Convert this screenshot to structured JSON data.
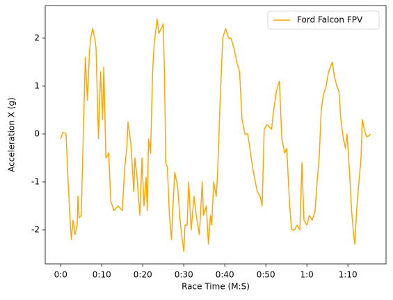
{
  "chart_data": {
    "type": "line",
    "xlabel": "Race Time (M:S)",
    "ylabel": "Acceleration X (g)",
    "legend": "upper right",
    "grid": false,
    "xlim": [
      -3.78,
      79.3
    ],
    "ylim": [
      -2.71,
      2.68
    ],
    "xticks": [
      {
        "value": 0,
        "label": "0:0"
      },
      {
        "value": 10,
        "label": "0:10"
      },
      {
        "value": 20,
        "label": "0:20"
      },
      {
        "value": 30,
        "label": "0:30"
      },
      {
        "value": 40,
        "label": "0:40"
      },
      {
        "value": 50,
        "label": "0:50"
      },
      {
        "value": 60,
        "label": "1:0"
      },
      {
        "value": 70,
        "label": "1:10"
      }
    ],
    "yticks": [
      -2,
      -1,
      0,
      1,
      2
    ],
    "x": [
      0,
      0.5,
      1.0,
      1.3,
      1.8,
      2.3,
      2.6,
      3.0,
      3.5,
      4.0,
      4.2,
      4.5,
      5.0,
      5.5,
      6.0,
      6.5,
      7.0,
      7.3,
      7.8,
      8.3,
      8.6,
      9.2,
      9.7,
      10.2,
      10.5,
      11.0,
      11.7,
      12.2,
      13.0,
      14.0,
      15.0,
      15.6,
      16.1,
      16.4,
      17.1,
      17.8,
      18.1,
      18.6,
      19.3,
      19.8,
      20.3,
      20.8,
      21.1,
      21.4,
      21.9,
      22.4,
      22.8,
      23.5,
      23.9,
      24.5,
      25.0,
      25.3,
      25.6,
      26.0,
      26.5,
      27.0,
      27.3,
      27.8,
      28.5,
      29.1,
      29.6,
      30.0,
      30.3,
      30.8,
      31.2,
      31.8,
      32.5,
      33.2,
      33.8,
      34.5,
      34.8,
      35.5,
      36.0,
      36.5,
      36.8,
      37.3,
      37.9,
      38.2,
      38.9,
      39.5,
      40.2,
      40.9,
      41.5,
      42.2,
      42.9,
      43.6,
      44.2,
      44.9,
      45.6,
      46.1,
      46.6,
      47.2,
      47.9,
      48.6,
      49.1,
      49.6,
      50.3,
      50.8,
      51.4,
      51.9,
      52.6,
      53.3,
      53.9,
      54.6,
      55.1,
      55.8,
      56.3,
      57.0,
      57.6,
      58.3,
      58.8,
      59.3,
      60.0,
      60.6,
      61.3,
      62.0,
      62.5,
      63.0,
      63.5,
      64.0,
      64.7,
      65.3,
      66.2,
      66.7,
      67.3,
      67.8,
      68.3,
      68.9,
      69.4,
      69.8,
      70.4,
      70.9,
      71.4,
      71.7,
      72.2,
      72.7,
      73.2,
      73.5,
      74.0,
      74.5,
      75.0,
      75.5
    ],
    "series": [
      {
        "name": "Ford Falcon FPV",
        "color": "#ffa500",
        "values": [
          -0.1,
          0.03,
          0.02,
          0.0,
          -1.0,
          -1.8,
          -2.2,
          -1.8,
          -2.1,
          -1.9,
          -1.3,
          -1.75,
          -1.7,
          0.0,
          1.6,
          0.7,
          1.7,
          2.0,
          2.2,
          2.0,
          1.8,
          -0.1,
          1.3,
          0.3,
          1.4,
          -0.5,
          -0.4,
          -1.4,
          -1.6,
          -1.5,
          -1.6,
          -0.7,
          -0.3,
          0.25,
          -0.2,
          -1.2,
          -0.5,
          -0.9,
          -1.7,
          -0.5,
          -1.5,
          -0.9,
          -1.6,
          -0.1,
          -0.4,
          1.3,
          1.9,
          2.4,
          2.1,
          2.2,
          2.3,
          1.2,
          -0.6,
          -0.7,
          -1.7,
          -2.2,
          -1.6,
          -0.8,
          -1.1,
          -1.8,
          -2.2,
          -2.45,
          -1.9,
          -1.9,
          -1.0,
          -2.0,
          -1.3,
          -1.8,
          -2.1,
          -1.0,
          -1.7,
          -1.5,
          -2.3,
          -1.7,
          -1.9,
          -1.0,
          -1.3,
          -0.9,
          0.8,
          2.0,
          2.2,
          2.0,
          2.0,
          1.8,
          1.5,
          1.3,
          0.3,
          0.0,
          0.0,
          -0.3,
          -0.6,
          -0.9,
          -1.2,
          -1.3,
          -1.5,
          0.1,
          0.2,
          0.15,
          0.1,
          0.5,
          0.9,
          1.1,
          -0.1,
          -0.4,
          -0.3,
          -1.5,
          -2.0,
          -2.0,
          -1.9,
          -2.0,
          -0.6,
          -1.8,
          -1.9,
          -1.7,
          -1.8,
          -1.6,
          -1.0,
          -0.5,
          0.5,
          0.8,
          1.0,
          1.3,
          1.5,
          1.2,
          1.0,
          0.9,
          0.3,
          -0.1,
          -0.3,
          0.0,
          -0.8,
          -1.6,
          -2.1,
          -2.3,
          -1.5,
          -1.0,
          -0.5,
          0.3,
          0.1,
          -0.05,
          -0.05,
          0.0
        ]
      }
    ]
  }
}
